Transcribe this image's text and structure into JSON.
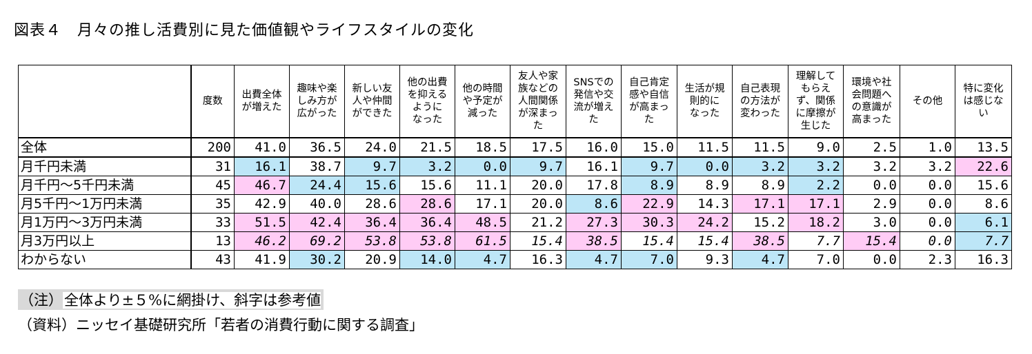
{
  "title": "図表４　月々の推し活費別に見た価値観やライフスタイルの変化",
  "table": {
    "headers": [
      "度数",
      "出費全体\nが増えた",
      "趣味や楽\nしみ方が\n広がった",
      "新しい友\n人や仲間\nができた",
      "他の出費\nを抑える\nように\nなった",
      "他の時間\nや予定が\n減った",
      "友人や家\n族などの\n人間関係\nが深まっ\nた",
      "SNSでの\n発信や交\n流が増え\nた",
      "自己肯定\n感や自信\nが高まっ\nた",
      "生活が規\n則的に\nなった",
      "自己表現\nの方法が\n変わった",
      "理解して\nもらえ\nず、関係\nに摩擦が\n生じた",
      "環境や社\n会問題へ\nの意識が\n高まった",
      "その他",
      "特に変化\nは感じな\nい"
    ],
    "rows": [
      {
        "label": "全体",
        "n": "200",
        "values": [
          "41.0",
          "36.5",
          "24.0",
          "21.5",
          "18.5",
          "17.5",
          "16.0",
          "15.0",
          "11.5",
          "11.5",
          "9.0",
          "2.5",
          "1.0",
          "13.5"
        ],
        "shade": [
          "",
          "",
          "",
          "",
          "",
          "",
          "",
          "",
          "",
          "",
          "",
          "",
          "",
          ""
        ]
      },
      {
        "label": "月千円未満",
        "n": "31",
        "values": [
          "16.1",
          "38.7",
          "9.7",
          "3.2",
          "0.0",
          "9.7",
          "16.1",
          "9.7",
          "0.0",
          "3.2",
          "3.2",
          "3.2",
          "3.2",
          "22.6"
        ],
        "shade": [
          "lo",
          "",
          "lo",
          "lo",
          "lo",
          "lo",
          "",
          "lo",
          "lo",
          "lo",
          "lo",
          "",
          "",
          "hi"
        ]
      },
      {
        "label": "月千円～5千円未満",
        "n": "45",
        "values": [
          "46.7",
          "24.4",
          "15.6",
          "15.6",
          "11.1",
          "20.0",
          "17.8",
          "8.9",
          "8.9",
          "8.9",
          "2.2",
          "0.0",
          "0.0",
          "15.6"
        ],
        "shade": [
          "hi",
          "lo",
          "lo",
          "",
          "",
          "",
          "",
          "lo",
          "",
          "",
          "lo",
          "",
          "",
          ""
        ]
      },
      {
        "label": "月5千円～1万円未満",
        "n": "35",
        "values": [
          "42.9",
          "40.0",
          "28.6",
          "28.6",
          "17.1",
          "20.0",
          "8.6",
          "22.9",
          "14.3",
          "17.1",
          "17.1",
          "2.9",
          "0.0",
          "8.6"
        ],
        "shade": [
          "",
          "",
          "",
          "hi",
          "",
          "",
          "lo",
          "hi",
          "",
          "hi",
          "hi",
          "",
          "",
          ""
        ]
      },
      {
        "label": "月1万円～3万円未満",
        "n": "33",
        "values": [
          "51.5",
          "42.4",
          "36.4",
          "36.4",
          "48.5",
          "21.2",
          "27.3",
          "30.3",
          "24.2",
          "15.2",
          "18.2",
          "3.0",
          "0.0",
          "6.1"
        ],
        "shade": [
          "hi",
          "hi",
          "hi",
          "hi",
          "hi",
          "",
          "hi",
          "hi",
          "hi",
          "",
          "hi",
          "",
          "",
          "lo"
        ]
      },
      {
        "label": "月3万円以上",
        "n": "13",
        "values": [
          "46.2",
          "69.2",
          "53.8",
          "53.8",
          "61.5",
          "15.4",
          "38.5",
          "15.4",
          "15.4",
          "38.5",
          "7.7",
          "15.4",
          "0.0",
          "7.7"
        ],
        "shade": [
          "",
          "",
          "",
          "",
          "",
          "",
          "",
          "",
          "",
          "",
          "",
          "",
          "",
          ""
        ]
      },
      {
        "label": "わからない",
        "n": "43",
        "values": [
          "41.9",
          "30.2",
          "20.9",
          "14.0",
          "4.7",
          "16.3",
          "4.7",
          "7.0",
          "9.3",
          "4.7",
          "7.0",
          "0.0",
          "2.3",
          "16.3"
        ],
        "shade": [
          "",
          "lo",
          "",
          "lo",
          "lo",
          "",
          "lo",
          "lo",
          "",
          "lo",
          "",
          "",
          "",
          ""
        ]
      }
    ]
  },
  "ref_row_shade": [
    "hi",
    "hi",
    "hi",
    "hi",
    "hi",
    "",
    "hi",
    "",
    "",
    "hi",
    "",
    "hi",
    "",
    "lo"
  ],
  "note_label": "（注）",
  "note_text": "全体より±５%に網掛け、斜字は参考値",
  "source": "（資料）ニッセイ基礎研究所「若者の消費行動に関する調査」",
  "colors": {
    "above": "#ffccf5",
    "below": "#bde6f7",
    "note_bg": "#d9d9d9"
  }
}
